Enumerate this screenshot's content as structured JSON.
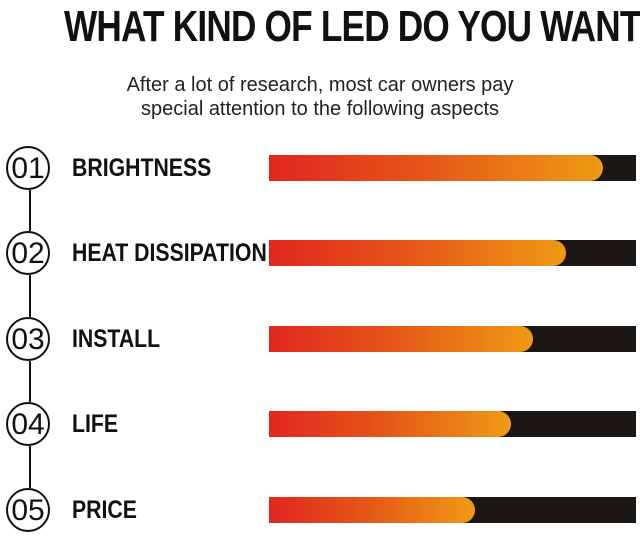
{
  "title": "WHAT KIND OF LED DO YOU WANT?",
  "subtitle": [
    "After a lot of research, most car owners pay",
    "special attention to the following aspects"
  ],
  "colors": {
    "fill_start": "#e2261f",
    "fill_end": "#ef9a14",
    "track": "#1a1714"
  },
  "items": [
    {
      "number": "01",
      "label": "BRIGHTNESS",
      "level": 0.91
    },
    {
      "number": "02",
      "label": "HEAT DISSIPATION",
      "level": 0.81
    },
    {
      "number": "03",
      "label": "INSTALL",
      "level": 0.72
    },
    {
      "number": "04",
      "label": "LIFE",
      "level": 0.66
    },
    {
      "number": "05",
      "label": "PRICE",
      "level": 0.56
    }
  ]
}
